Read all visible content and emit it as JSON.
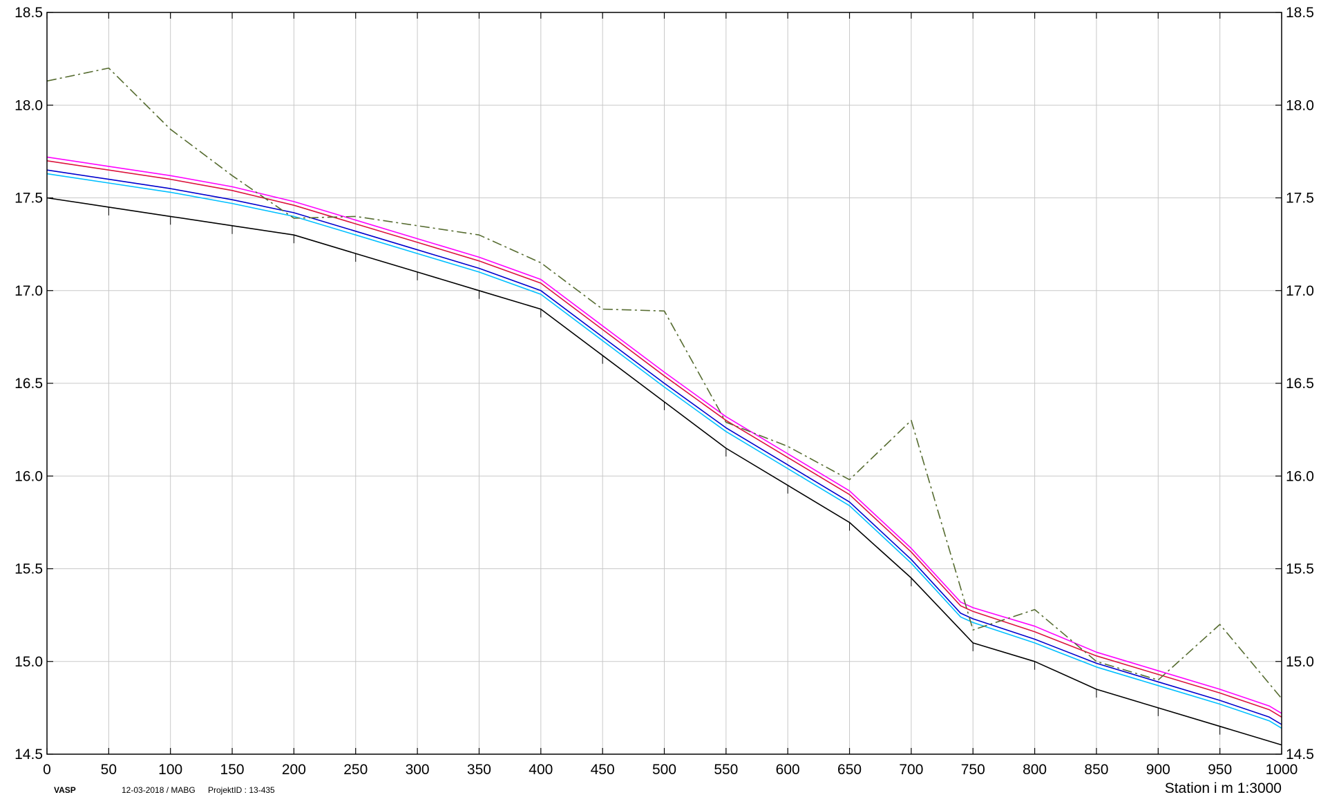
{
  "chart_data": {
    "type": "line",
    "title": "",
    "xlabel": "Station i m  1:3000",
    "ylabel": "",
    "xlim": [
      0,
      1000
    ],
    "ylim": [
      14.5,
      18.5
    ],
    "grid": true,
    "x_ticks": [
      "0",
      "50",
      "100",
      "150",
      "200",
      "250",
      "300",
      "350",
      "400",
      "450",
      "500",
      "550",
      "600",
      "650",
      "700",
      "750",
      "800",
      "850",
      "900",
      "950",
      "1000"
    ],
    "y_ticks": [
      "14.5",
      "15.0",
      "15.5",
      "16.0",
      "16.5",
      "17.0",
      "17.5",
      "18.0",
      "18.5"
    ],
    "station_ticks": [
      50,
      100,
      150,
      200,
      250,
      300,
      350,
      400,
      450,
      500,
      550,
      600,
      650,
      700,
      750,
      800,
      850,
      900,
      950,
      1000
    ],
    "series": [
      {
        "color": "#000000",
        "dash": "solid",
        "x": [
          0,
          50,
          100,
          150,
          200,
          250,
          300,
          350,
          400,
          450,
          500,
          550,
          600,
          650,
          700,
          750,
          800,
          850,
          900,
          950,
          1000
        ],
        "y": [
          17.5,
          17.45,
          17.4,
          17.35,
          17.3,
          17.2,
          17.1,
          17.0,
          16.9,
          16.65,
          16.4,
          16.15,
          15.95,
          15.75,
          15.45,
          15.1,
          15.0,
          14.85,
          14.75,
          14.65,
          14.55
        ]
      },
      {
        "color": "#00bfff",
        "dash": "solid",
        "x": [
          0,
          50,
          100,
          150,
          200,
          250,
          300,
          350,
          400,
          450,
          500,
          550,
          600,
          650,
          700,
          740,
          750,
          800,
          850,
          900,
          950,
          990,
          1000
        ],
        "y": [
          17.63,
          17.58,
          17.53,
          17.47,
          17.4,
          17.3,
          17.2,
          17.1,
          16.98,
          16.73,
          16.48,
          16.24,
          16.04,
          15.84,
          15.53,
          15.24,
          15.21,
          15.1,
          14.97,
          14.87,
          14.77,
          14.68,
          14.64
        ]
      },
      {
        "color": "#0000cd",
        "dash": "solid",
        "x": [
          0,
          50,
          100,
          150,
          200,
          250,
          300,
          350,
          400,
          450,
          500,
          550,
          600,
          650,
          700,
          740,
          750,
          800,
          850,
          900,
          950,
          990,
          1000
        ],
        "y": [
          17.65,
          17.6,
          17.55,
          17.49,
          17.42,
          17.32,
          17.22,
          17.12,
          17.0,
          16.75,
          16.5,
          16.26,
          16.06,
          15.86,
          15.55,
          15.26,
          15.23,
          15.12,
          14.99,
          14.89,
          14.79,
          14.7,
          14.66
        ]
      },
      {
        "color": "#dc143c",
        "dash": "solid",
        "x": [
          0,
          50,
          100,
          150,
          200,
          250,
          300,
          350,
          400,
          450,
          500,
          550,
          600,
          650,
          700,
          740,
          750,
          800,
          850,
          900,
          950,
          990,
          1000
        ],
        "y": [
          17.7,
          17.65,
          17.6,
          17.54,
          17.46,
          17.36,
          17.26,
          17.16,
          17.04,
          16.79,
          16.54,
          16.3,
          16.1,
          15.9,
          15.59,
          15.3,
          15.27,
          15.16,
          15.03,
          14.93,
          14.83,
          14.74,
          14.7
        ]
      },
      {
        "color": "#ff00ff",
        "dash": "solid",
        "x": [
          0,
          50,
          100,
          150,
          200,
          250,
          300,
          350,
          400,
          450,
          500,
          550,
          600,
          650,
          700,
          740,
          750,
          800,
          850,
          900,
          950,
          990,
          1000
        ],
        "y": [
          17.72,
          17.67,
          17.62,
          17.56,
          17.48,
          17.38,
          17.28,
          17.18,
          17.06,
          16.81,
          16.56,
          16.32,
          16.12,
          15.92,
          15.61,
          15.32,
          15.29,
          15.19,
          15.05,
          14.95,
          14.85,
          14.76,
          14.72
        ]
      },
      {
        "color": "#556b2f",
        "dash": "dashdot",
        "x": [
          0,
          50,
          100,
          150,
          200,
          250,
          300,
          350,
          400,
          450,
          500,
          550,
          600,
          650,
          700,
          750,
          800,
          850,
          900,
          950,
          1000
        ],
        "y": [
          18.13,
          18.2,
          17.87,
          17.62,
          17.39,
          17.4,
          17.35,
          17.3,
          17.15,
          16.9,
          16.89,
          16.29,
          16.16,
          15.98,
          16.3,
          15.17,
          15.28,
          15.0,
          14.9,
          15.2,
          14.8
        ]
      }
    ]
  },
  "footer": {
    "program": "VASP",
    "date_user": "12-03-2018 / MABG",
    "project": "ProjektID : 13-435"
  }
}
